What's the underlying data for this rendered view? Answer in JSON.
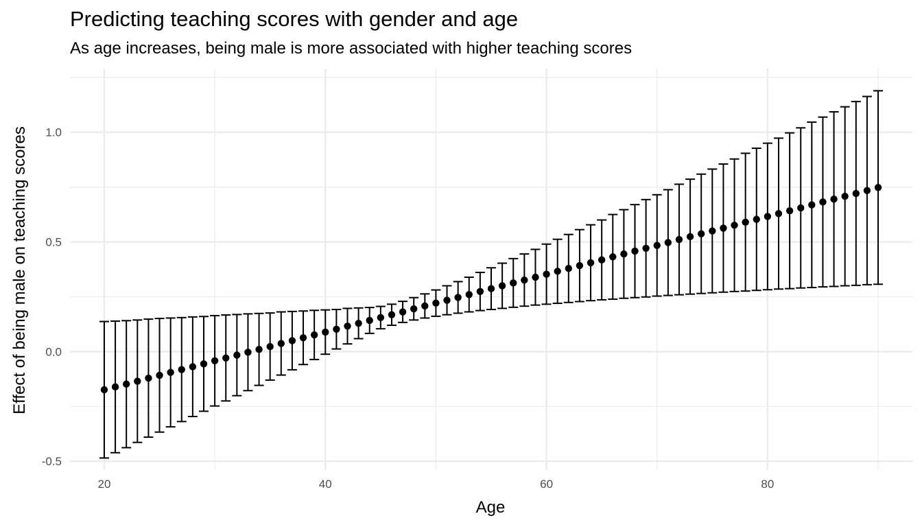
{
  "chart_data": {
    "type": "scatter",
    "title": "Predicting teaching scores with gender and age",
    "subtitle": "As age increases, being male is more associated with higher teaching scores",
    "xlabel": "Age",
    "ylabel": "Effect of being male on teaching scores",
    "xlim": [
      16.9,
      93.1
    ],
    "ylim": [
      -0.54,
      1.29
    ],
    "x_ticks": [
      20,
      40,
      60,
      80
    ],
    "x_tick_labels": [
      "20",
      "40",
      "60",
      "80"
    ],
    "y_ticks": [
      -0.5,
      0.0,
      0.5,
      1.0
    ],
    "y_tick_labels": [
      "-0.5",
      "0.0",
      "0.5",
      "1.0"
    ],
    "grid": true,
    "point_color": "#000000",
    "errorbar_color": "#000000",
    "gridline_color": "#ebebeb",
    "series": [
      {
        "type": "pointrange",
        "x_start": 20,
        "x_step": 1,
        "estimate": [
          -0.174,
          -0.161,
          -0.148,
          -0.135,
          -0.121,
          -0.108,
          -0.095,
          -0.082,
          -0.069,
          -0.056,
          -0.042,
          -0.029,
          -0.016,
          -0.003,
          0.01,
          0.023,
          0.037,
          0.05,
          0.063,
          0.076,
          0.089,
          0.102,
          0.116,
          0.129,
          0.142,
          0.155,
          0.168,
          0.181,
          0.195,
          0.208,
          0.221,
          0.234,
          0.247,
          0.26,
          0.274,
          0.287,
          0.3,
          0.313,
          0.326,
          0.339,
          0.353,
          0.366,
          0.379,
          0.392,
          0.405,
          0.418,
          0.432,
          0.445,
          0.458,
          0.471,
          0.484,
          0.497,
          0.511,
          0.524,
          0.537,
          0.55,
          0.563,
          0.576,
          0.59,
          0.603,
          0.616,
          0.629,
          0.642,
          0.655,
          0.669,
          0.682,
          0.695,
          0.708,
          0.721,
          0.734,
          0.748
        ],
        "lower": [
          -0.485,
          -0.461,
          -0.438,
          -0.414,
          -0.39,
          -0.367,
          -0.343,
          -0.319,
          -0.296,
          -0.272,
          -0.248,
          -0.225,
          -0.201,
          -0.178,
          -0.154,
          -0.13,
          -0.107,
          -0.083,
          -0.059,
          -0.036,
          -0.012,
          0.012,
          0.035,
          0.059,
          0.083,
          0.104,
          0.12,
          0.133,
          0.144,
          0.153,
          0.161,
          0.168,
          0.175,
          0.181,
          0.187,
          0.192,
          0.197,
          0.202,
          0.207,
          0.212,
          0.216,
          0.22,
          0.224,
          0.228,
          0.232,
          0.236,
          0.239,
          0.243,
          0.246,
          0.249,
          0.253,
          0.256,
          0.259,
          0.262,
          0.265,
          0.268,
          0.271,
          0.274,
          0.276,
          0.279,
          0.282,
          0.285,
          0.287,
          0.29,
          0.292,
          0.295,
          0.297,
          0.3,
          0.302,
          0.305,
          0.307
        ],
        "upper": [
          0.137,
          0.139,
          0.141,
          0.144,
          0.148,
          0.151,
          0.153,
          0.155,
          0.158,
          0.16,
          0.164,
          0.167,
          0.169,
          0.172,
          0.174,
          0.176,
          0.181,
          0.183,
          0.185,
          0.188,
          0.19,
          0.192,
          0.197,
          0.199,
          0.201,
          0.206,
          0.216,
          0.229,
          0.246,
          0.263,
          0.281,
          0.3,
          0.319,
          0.339,
          0.361,
          0.382,
          0.403,
          0.424,
          0.445,
          0.466,
          0.49,
          0.512,
          0.534,
          0.556,
          0.578,
          0.6,
          0.625,
          0.647,
          0.67,
          0.693,
          0.715,
          0.738,
          0.763,
          0.786,
          0.809,
          0.832,
          0.855,
          0.878,
          0.904,
          0.927,
          0.95,
          0.973,
          0.997,
          1.02,
          1.046,
          1.069,
          1.093,
          1.116,
          1.14,
          1.163,
          1.189
        ]
      }
    ]
  }
}
